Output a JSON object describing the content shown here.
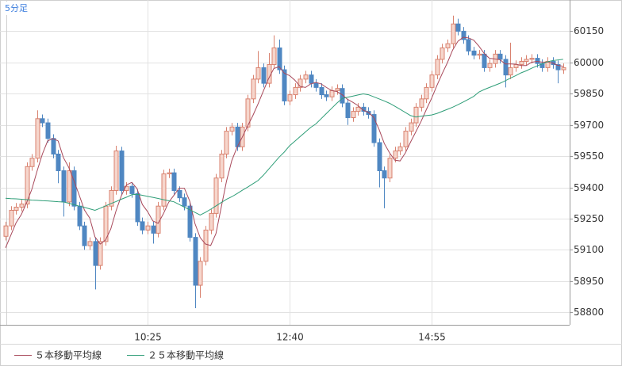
{
  "chart_data": {
    "type": "candlestick",
    "title": "5分足",
    "categories": [
      null,
      null,
      null,
      null,
      null,
      null,
      null,
      null,
      null,
      null,
      null,
      null,
      null,
      null,
      null,
      null,
      null,
      null,
      null,
      null,
      null,
      null,
      null,
      null,
      null,
      null,
      null,
      "10:25",
      null,
      null,
      null,
      null,
      null,
      null,
      null,
      null,
      null,
      null,
      null,
      null,
      null,
      null,
      null,
      null,
      null,
      null,
      null,
      null,
      null,
      null,
      null,
      null,
      null,
      null,
      "12:40",
      null,
      null,
      null,
      null,
      null,
      null,
      null,
      null,
      null,
      null,
      null,
      null,
      null,
      null,
      null,
      null,
      null,
      null,
      null,
      null,
      null,
      null,
      null,
      null,
      null,
      null,
      "14:55",
      null,
      null,
      null,
      null,
      null,
      null,
      null,
      null,
      null,
      null,
      null,
      null,
      null,
      null,
      null,
      null,
      null,
      null,
      null,
      null,
      null,
      null,
      null,
      null,
      null
    ],
    "open": [
      59165,
      59215,
      59290,
      59305,
      59320,
      59500,
      59540,
      59730,
      59710,
      59635,
      59560,
      59480,
      59330,
      59480,
      59310,
      59215,
      59120,
      59140,
      59025,
      59140,
      59310,
      59385,
      59575,
      59385,
      59405,
      59370,
      59235,
      59195,
      59215,
      59180,
      59310,
      59465,
      59470,
      59385,
      59350,
      59310,
      59160,
      58930,
      59045,
      59195,
      59275,
      59445,
      59560,
      59670,
      59690,
      59595,
      59690,
      59825,
      59920,
      59975,
      59900,
      59990,
      60070,
      59965,
      59815,
      59845,
      59880,
      59920,
      59940,
      59900,
      59880,
      59845,
      59835,
      59865,
      59875,
      59805,
      59735,
      59765,
      59785,
      59765,
      59750,
      59615,
      59480,
      59445,
      59540,
      59575,
      59595,
      59670,
      59710,
      59785,
      59825,
      59880,
      59940,
      60015,
      60070,
      60090,
      60185,
      60150,
      60110,
      60055,
      60035,
      60040,
      59975,
      59995,
      60040,
      60015,
      59940,
      59975,
      59990,
      60005,
      60015,
      60020,
      59995,
      59975,
      60005,
      59990,
      59965
    ],
    "high": [
      59235,
      59310,
      59325,
      59340,
      59520,
      59560,
      59770,
      59750,
      59730,
      59655,
      59580,
      59500,
      59520,
      59500,
      59330,
      59235,
      59160,
      59160,
      59160,
      59330,
      59405,
      59600,
      59595,
      59425,
      59425,
      59390,
      59255,
      59235,
      59235,
      59330,
      59485,
      59490,
      59490,
      59405,
      59370,
      59330,
      59180,
      59065,
      59215,
      59295,
      59465,
      59580,
      59690,
      59710,
      59710,
      59710,
      59845,
      59940,
      60055,
      59995,
      60045,
      60130,
      60110,
      59985,
      59865,
      59900,
      59940,
      59960,
      59960,
      59920,
      59900,
      59865,
      59885,
      59895,
      59895,
      59825,
      59785,
      59805,
      59805,
      59785,
      59770,
      59635,
      59500,
      59560,
      59595,
      59615,
      59690,
      59730,
      59805,
      59845,
      59900,
      59960,
      60035,
      60090,
      60110,
      60225,
      60210,
      60170,
      60130,
      60075,
      60060,
      60060,
      60015,
      60060,
      60060,
      60035,
      60095,
      60010,
      60025,
      60035,
      60040,
      60040,
      60015,
      60025,
      60025,
      60010,
      59995
    ],
    "low": [
      59145,
      59195,
      59270,
      59285,
      59300,
      59480,
      59520,
      59690,
      59615,
      59540,
      59420,
      59260,
      59310,
      59290,
      59195,
      59100,
      59100,
      58910,
      59005,
      59120,
      59290,
      59365,
      59365,
      59365,
      59350,
      59215,
      59175,
      59175,
      59130,
      59160,
      59290,
      59445,
      59365,
      59330,
      59290,
      59140,
      58820,
      58870,
      59025,
      59175,
      59255,
      59425,
      59540,
      59650,
      59575,
      59575,
      59670,
      59805,
      59900,
      59880,
      59880,
      59970,
      59945,
      59795,
      59795,
      59825,
      59860,
      59900,
      59880,
      59860,
      59825,
      59815,
      59815,
      59845,
      59785,
      59700,
      59715,
      59745,
      59745,
      59730,
      59595,
      59400,
      59300,
      59425,
      59520,
      59555,
      59575,
      59650,
      59690,
      59765,
      59805,
      59860,
      59920,
      59995,
      60050,
      60070,
      60130,
      60090,
      60035,
      60015,
      60015,
      59955,
      59955,
      59975,
      59995,
      59880,
      59920,
      59955,
      59970,
      59985,
      59995,
      59975,
      59955,
      59955,
      59970,
      59900,
      59945
    ],
    "close": [
      59215,
      59290,
      59305,
      59320,
      59500,
      59540,
      59730,
      59710,
      59635,
      59560,
      59480,
      59330,
      59480,
      59310,
      59215,
      59120,
      59140,
      59025,
      59140,
      59310,
      59385,
      59575,
      59385,
      59405,
      59370,
      59235,
      59195,
      59215,
      59180,
      59310,
      59465,
      59470,
      59385,
      59350,
      59310,
      59160,
      58930,
      59045,
      59195,
      59275,
      59445,
      59560,
      59670,
      59690,
      59595,
      59690,
      59825,
      59920,
      59975,
      59900,
      59990,
      60070,
      59965,
      59815,
      59845,
      59880,
      59920,
      59940,
      59900,
      59880,
      59845,
      59835,
      59865,
      59875,
      59805,
      59735,
      59765,
      59785,
      59765,
      59750,
      59615,
      59480,
      59445,
      59540,
      59575,
      59595,
      59670,
      59710,
      59785,
      59825,
      59880,
      59940,
      60015,
      60070,
      60090,
      60185,
      60150,
      60110,
      60055,
      60035,
      60040,
      59975,
      59995,
      60040,
      60015,
      59940,
      59975,
      59990,
      60005,
      60015,
      60020,
      59995,
      59975,
      60005,
      59990,
      59965,
      59975
    ],
    "up_color": "#d9826f",
    "up_fill": "#f6d6cc",
    "down_color": "#4f87c2",
    "series": [
      {
        "name": "５本移動平均線",
        "color": "#a8485a",
        "values": [
          59110,
          59170,
          59230,
          59270,
          59326,
          59391,
          59479,
          59560,
          59623,
          59635,
          59623,
          59543,
          59497,
          59432,
          59363,
          59291,
          59253,
          59162,
          59128,
          59147,
          59200,
          59287,
          59359,
          59412,
          59424,
          59394,
          59318,
          59284,
          59239,
          59227,
          59273,
          59328,
          59362,
          59396,
          59396,
          59335,
          59227,
          59159,
          59128,
          59121,
          59178,
          59304,
          59429,
          59528,
          59592,
          59641,
          59694,
          59744,
          59801,
          59862,
          59922,
          59971,
          59980,
          59948,
          59937,
          59915,
          59885,
          59880,
          59897,
          59904,
          59897,
          59880,
          59865,
          59860,
          59845,
          59823,
          59809,
          59793,
          59771,
          59760,
          59736,
          59679,
          59611,
          59566,
          59531,
          59527,
          59565,
          59618,
          59667,
          59717,
          59774,
          59828,
          59889,
          59946,
          59999,
          60060,
          60102,
          60121,
          60118,
          60107,
          60078,
          60043,
          60020,
          60017,
          60013,
          59993,
          59993,
          59992,
          59985,
          59985,
          60001,
          60005,
          60002,
          60002,
          59997,
          59986,
          59982
        ]
      },
      {
        "name": "２５本移動平均線",
        "color": "#2f9e78",
        "values": [
          59348,
          59346,
          59345,
          59343,
          59341,
          59339,
          59338,
          59336,
          59335,
          59333,
          59331,
          59330,
          59324,
          59317,
          59310,
          59304,
          59297,
          59290,
          59300,
          59311,
          59322,
          59332,
          59343,
          59353,
          59365,
          59367,
          59362,
          59357,
          59352,
          59347,
          59341,
          59336,
          59331,
          59318,
          59305,
          59293,
          59280,
          59267,
          59280,
          59295,
          59311,
          59327,
          59343,
          59355,
          59370,
          59386,
          59401,
          59417,
          59433,
          59458,
          59487,
          59516,
          59545,
          59570,
          59600,
          59622,
          59644,
          59666,
          59688,
          59705,
          59730,
          59755,
          59780,
          59805,
          59827,
          59833,
          59838,
          59844,
          59849,
          59845,
          59835,
          59825,
          59815,
          59804,
          59790,
          59775,
          59760,
          59745,
          59738,
          59742,
          59745,
          59748,
          59755,
          59765,
          59775,
          59785,
          59797,
          59810,
          59823,
          59837,
          59858,
          59870,
          59880,
          59890,
          59900,
          59912,
          59925,
          59937,
          59950,
          59960,
          59972,
          59983,
          59993,
          60003,
          60009,
          60012,
          60015
        ]
      }
    ],
    "ylim": [
      58740,
      60300
    ],
    "yticks": [
      58800,
      58950,
      59100,
      59250,
      59400,
      59550,
      59700,
      59850,
      60000,
      60150
    ],
    "grid": true
  }
}
